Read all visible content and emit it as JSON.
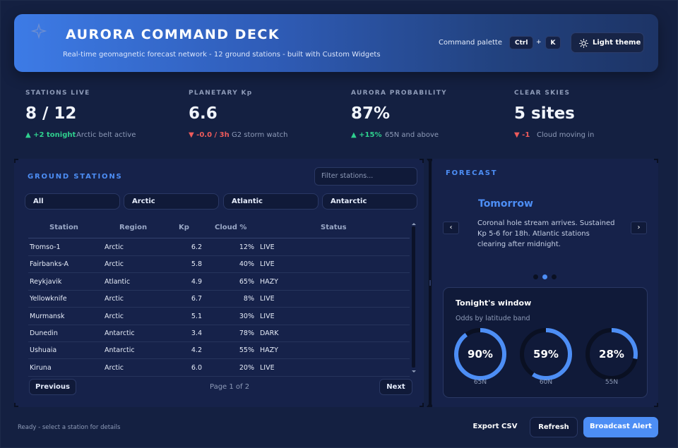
{
  "header": {
    "title": "AURORA COMMAND DECK",
    "subtitle": "Real-time geomagnetic forecast network  -  12 ground stations  -  built with Custom Widgets",
    "command_palette_label": "Command palette",
    "key1": "Ctrl",
    "plus": "+",
    "key2": "K",
    "theme_button": "Light theme",
    "logo_icon": "sparkle-icon",
    "theme_icon": "sun-icon"
  },
  "kpis": [
    {
      "label": "STATIONS LIVE",
      "value": "8 / 12",
      "delta": "▲ +2 tonight",
      "note": "Arctic belt active",
      "trend": "up"
    },
    {
      "label": "PLANETARY Kp",
      "value": "6.6",
      "delta": "▼ -0.0 / 3h",
      "note": "G2 storm watch",
      "trend": "down"
    },
    {
      "label": "AURORA PROBABILITY",
      "value": "87%",
      "delta": "▲ +15%",
      "note": "65N and above",
      "trend": "up"
    },
    {
      "label": "CLEAR SKIES",
      "value": "5 sites",
      "delta": "▼ -1",
      "note": "Cloud moving in",
      "trend": "down"
    }
  ],
  "stations": {
    "title": "GROUND STATIONS",
    "filter_placeholder": "Filter stations...",
    "chips": [
      "All",
      "Arctic",
      "Atlantic",
      "Antarctic"
    ],
    "columns": [
      "Station",
      "Region",
      "Kp",
      "Cloud %",
      "Status"
    ],
    "rows": [
      {
        "station": "Tromso-1",
        "region": "Arctic",
        "kp": "6.2",
        "cloud": "12%",
        "status": "LIVE"
      },
      {
        "station": "Fairbanks-A",
        "region": "Arctic",
        "kp": "5.8",
        "cloud": "40%",
        "status": "LIVE"
      },
      {
        "station": "Reykjavik",
        "region": "Atlantic",
        "kp": "4.9",
        "cloud": "65%",
        "status": "HAZY"
      },
      {
        "station": "Yellowknife",
        "region": "Arctic",
        "kp": "6.7",
        "cloud": "8%",
        "status": "LIVE"
      },
      {
        "station": "Murmansk",
        "region": "Arctic",
        "kp": "5.1",
        "cloud": "30%",
        "status": "LIVE"
      },
      {
        "station": "Dunedin",
        "region": "Antarctic",
        "kp": "3.4",
        "cloud": "78%",
        "status": "DARK"
      },
      {
        "station": "Ushuaia",
        "region": "Antarctic",
        "kp": "4.2",
        "cloud": "55%",
        "status": "HAZY"
      },
      {
        "station": "Kiruna",
        "region": "Arctic",
        "kp": "6.0",
        "cloud": "20%",
        "status": "LIVE"
      }
    ],
    "prev_label": "Previous",
    "page_info": "Page 1 of 2",
    "next_label": "Next"
  },
  "forecast": {
    "title": "FORECAST",
    "slide_title": "Tomorrow",
    "slide_body": "Coronal hole stream arrives. Sustained Kp 5-6 for 18h. Atlantic stations clearing after midnight.",
    "prev_icon": "‹",
    "next_icon": "›",
    "dots": 3,
    "active_dot": 1,
    "window": {
      "title": "Tonight's window",
      "subtitle": "Odds by latitude band",
      "gauges": [
        {
          "value": 90,
          "text": "90%",
          "label": "65N"
        },
        {
          "value": 59,
          "text": "59%",
          "label": "60N"
        },
        {
          "value": 28,
          "text": "28%",
          "label": "55N"
        }
      ]
    }
  },
  "footer": {
    "status": "Ready - select a station for details",
    "export_label": "Export CSV",
    "refresh_label": "Refresh",
    "broadcast_label": "Broadcast Alert"
  },
  "colors": {
    "accent": "#4d8ef5",
    "up": "#2fd08e",
    "down": "#ef5b5b",
    "gauge_track": "#0a1022"
  }
}
